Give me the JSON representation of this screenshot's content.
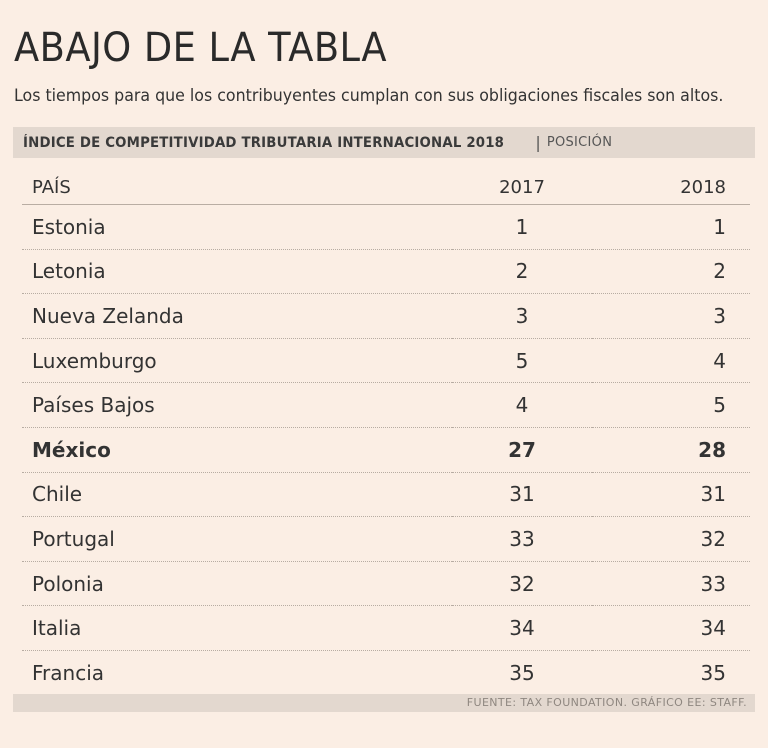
{
  "title": "ABAJO DE LA TABLA",
  "subtitle": "Los tiempos para que los contribuyentes cumplan con sus obligaciones fiscales son altos.",
  "band": {
    "main": "ÍNDICE DE COMPETITIVIDAD  TRIBUTARIA INTERNACIONAL 2018",
    "separator": "|",
    "sub": "POSICIÓN"
  },
  "footer": "FUENTE: TAX FOUNDATION. GRÁFICO EE: STAFF.",
  "colors": {
    "background": "#fbeee4",
    "band": "#e3d8cf"
  },
  "chart_data": {
    "type": "table",
    "title": "ÍNDICE DE COMPETITIVIDAD TRIBUTARIA INTERNACIONAL 2018",
    "columns": [
      "PAÍS",
      "2017",
      "2018"
    ],
    "highlight": "México",
    "rows": [
      {
        "country": "Estonia",
        "y2017": "1",
        "y2018": "1"
      },
      {
        "country": "Letonia",
        "y2017": "2",
        "y2018": "2"
      },
      {
        "country": "Nueva Zelanda",
        "y2017": "3",
        "y2018": "3"
      },
      {
        "country": "Luxemburgo",
        "y2017": "5",
        "y2018": "4"
      },
      {
        "country": "Países Bajos",
        "y2017": "4",
        "y2018": "5"
      },
      {
        "country": "México",
        "y2017": "27",
        "y2018": "28"
      },
      {
        "country": "Chile",
        "y2017": "31",
        "y2018": "31"
      },
      {
        "country": "Portugal",
        "y2017": "33",
        "y2018": "32"
      },
      {
        "country": "Polonia",
        "y2017": "32",
        "y2018": "33"
      },
      {
        "country": "Italia",
        "y2017": "34",
        "y2018": "34"
      },
      {
        "country": "Francia",
        "y2017": "35",
        "y2018": "35"
      }
    ]
  }
}
